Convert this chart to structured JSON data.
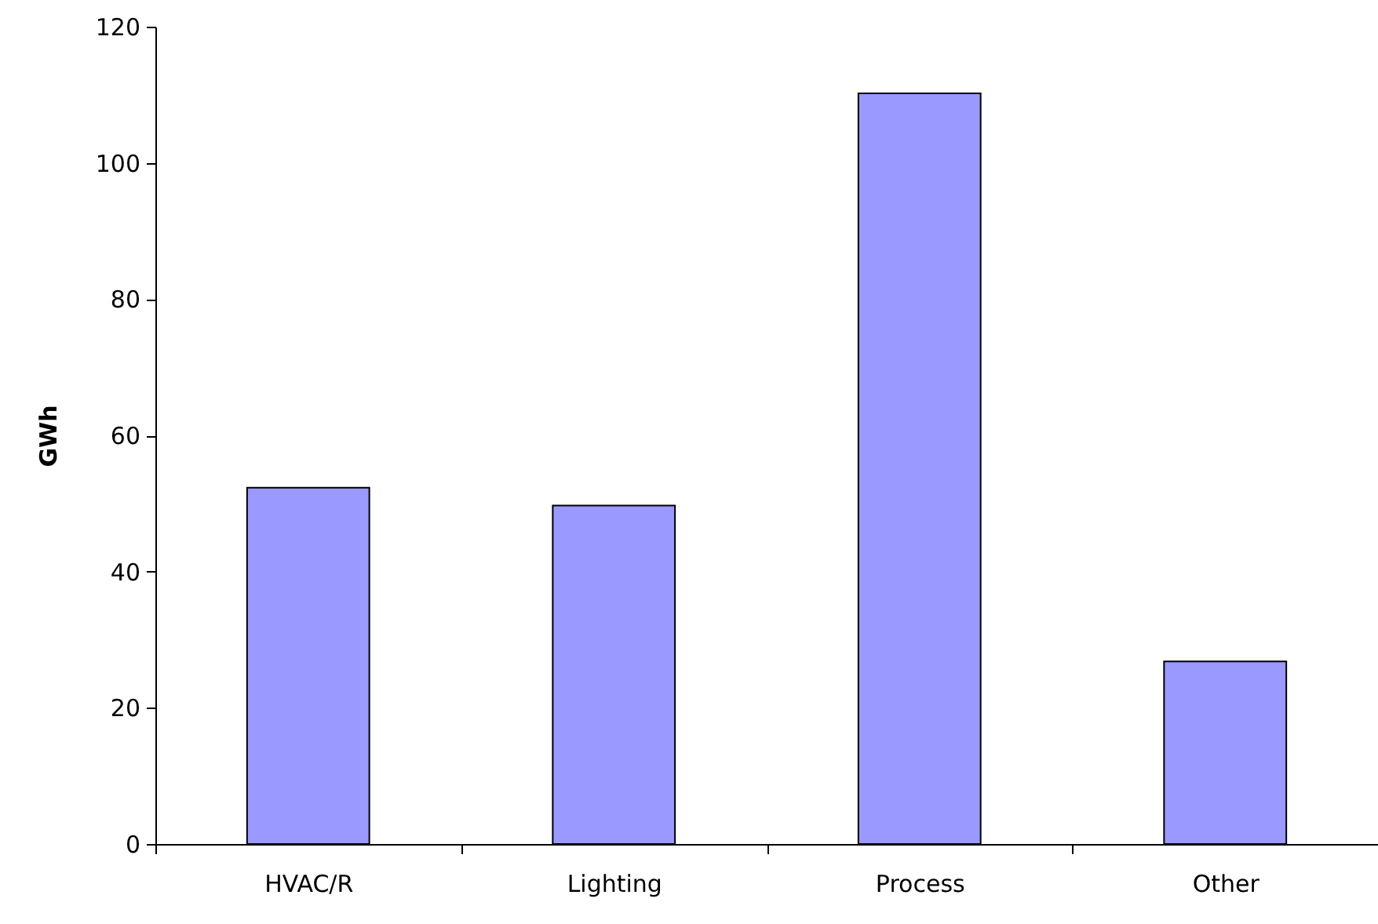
{
  "chart_data": {
    "type": "bar",
    "ylabel": "GWh",
    "categories": [
      "HVAC/R",
      "Lighting",
      "Process",
      "Other"
    ],
    "values": [
      52.3,
      49.7,
      110.2,
      26.8
    ],
    "color": "#9999ff",
    "ylim": [
      0,
      120
    ],
    "yticks": [
      0,
      20,
      40,
      60,
      80,
      100,
      120
    ],
    "grid": false
  }
}
